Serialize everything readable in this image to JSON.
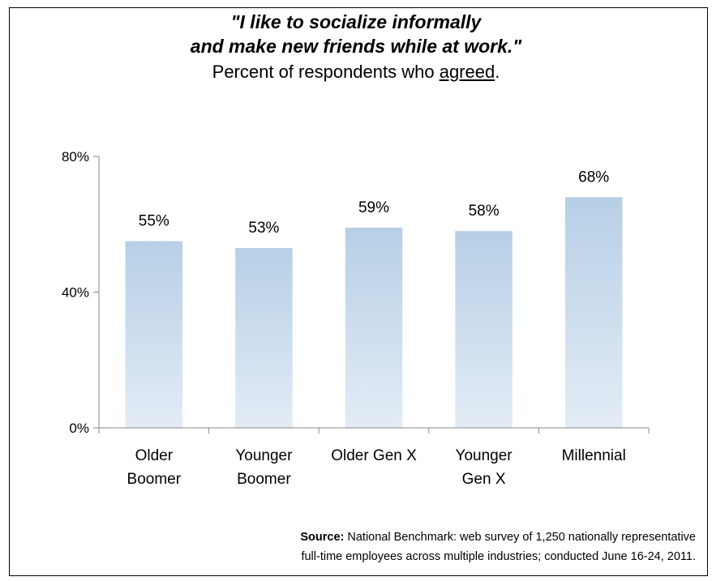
{
  "chart_data": {
    "type": "bar",
    "title_line1": "\"I like to socialize informally",
    "title_line2": "and make new friends while at work.\"",
    "subtitle_prefix": "Percent of respondents who ",
    "subtitle_emph": "agreed",
    "subtitle_suffix": ".",
    "categories": [
      [
        "Older",
        "Boomer"
      ],
      [
        "Younger",
        "Boomer"
      ],
      [
        "Older Gen X"
      ],
      [
        "Younger",
        "Gen X"
      ],
      [
        "Millennial"
      ]
    ],
    "values": [
      55,
      53,
      59,
      58,
      68
    ],
    "data_labels": [
      "55%",
      "53%",
      "59%",
      "58%",
      "68%"
    ],
    "ylim": [
      0,
      80
    ],
    "yticks": [
      0,
      40,
      80
    ],
    "ytick_labels": [
      "0%",
      "40%",
      "80%"
    ],
    "grid": false,
    "legend": "none",
    "bar_color_top": "#b7cfe6",
    "bar_color_bottom": "#e3ecf6"
  },
  "source": {
    "label": "Source:",
    "line1": " National Benchmark: web survey of 1,250 nationally representative",
    "line2": "full-time employees across multiple industries; conducted June 16-24, 2011."
  }
}
